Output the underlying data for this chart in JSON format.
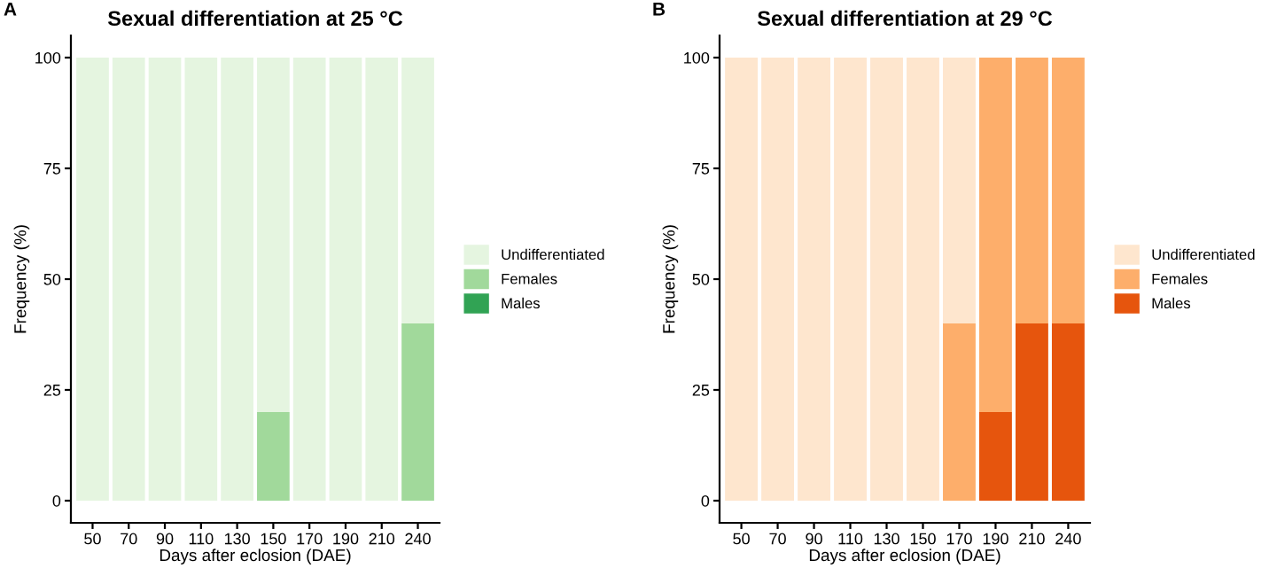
{
  "chart_data": [
    {
      "type": "bar",
      "stacked": true,
      "title": "Sexual differentiation at 25 °C",
      "xlabel": "Days after eclosion (DAE)",
      "ylabel": "Frequency (%)",
      "annotations": [
        "A"
      ],
      "categories": [
        "50",
        "70",
        "90",
        "110",
        "130",
        "150",
        "170",
        "190",
        "210",
        "240"
      ],
      "series": [
        {
          "name": "Males",
          "color": "#31a354",
          "values": [
            0,
            0,
            0,
            0,
            0,
            0,
            0,
            0,
            0,
            0
          ]
        },
        {
          "name": "Females",
          "color": "#a1d99b",
          "values": [
            0,
            0,
            0,
            0,
            0,
            20,
            0,
            0,
            0,
            40
          ]
        },
        {
          "name": "Undifferentiated",
          "color": "#e5f5e0",
          "values": [
            100,
            100,
            100,
            100,
            100,
            80,
            100,
            100,
            100,
            60
          ]
        }
      ],
      "ylim": [
        -5,
        105
      ],
      "yticks": [
        0,
        25,
        50,
        75,
        100
      ],
      "grid": false,
      "legend": "right"
    },
    {
      "type": "bar",
      "stacked": true,
      "title": "Sexual differentiation at 29 °C",
      "xlabel": "Days after eclosion (DAE)",
      "ylabel": "Frequency (%)",
      "annotations": [
        "B"
      ],
      "categories": [
        "50",
        "70",
        "90",
        "110",
        "130",
        "150",
        "170",
        "190",
        "210",
        "240"
      ],
      "series": [
        {
          "name": "Males",
          "color": "#e6550d",
          "values": [
            0,
            0,
            0,
            0,
            0,
            0,
            0,
            20,
            40,
            40
          ]
        },
        {
          "name": "Females",
          "color": "#fdae6b",
          "values": [
            0,
            0,
            0,
            0,
            0,
            0,
            40,
            80,
            60,
            60
          ]
        },
        {
          "name": "Undifferentiated",
          "color": "#fee6ce",
          "values": [
            100,
            100,
            100,
            100,
            100,
            100,
            60,
            0,
            0,
            0
          ]
        }
      ],
      "ylim": [
        -5,
        105
      ],
      "yticks": [
        0,
        25,
        50,
        75,
        100
      ],
      "grid": false,
      "legend": "right"
    }
  ]
}
